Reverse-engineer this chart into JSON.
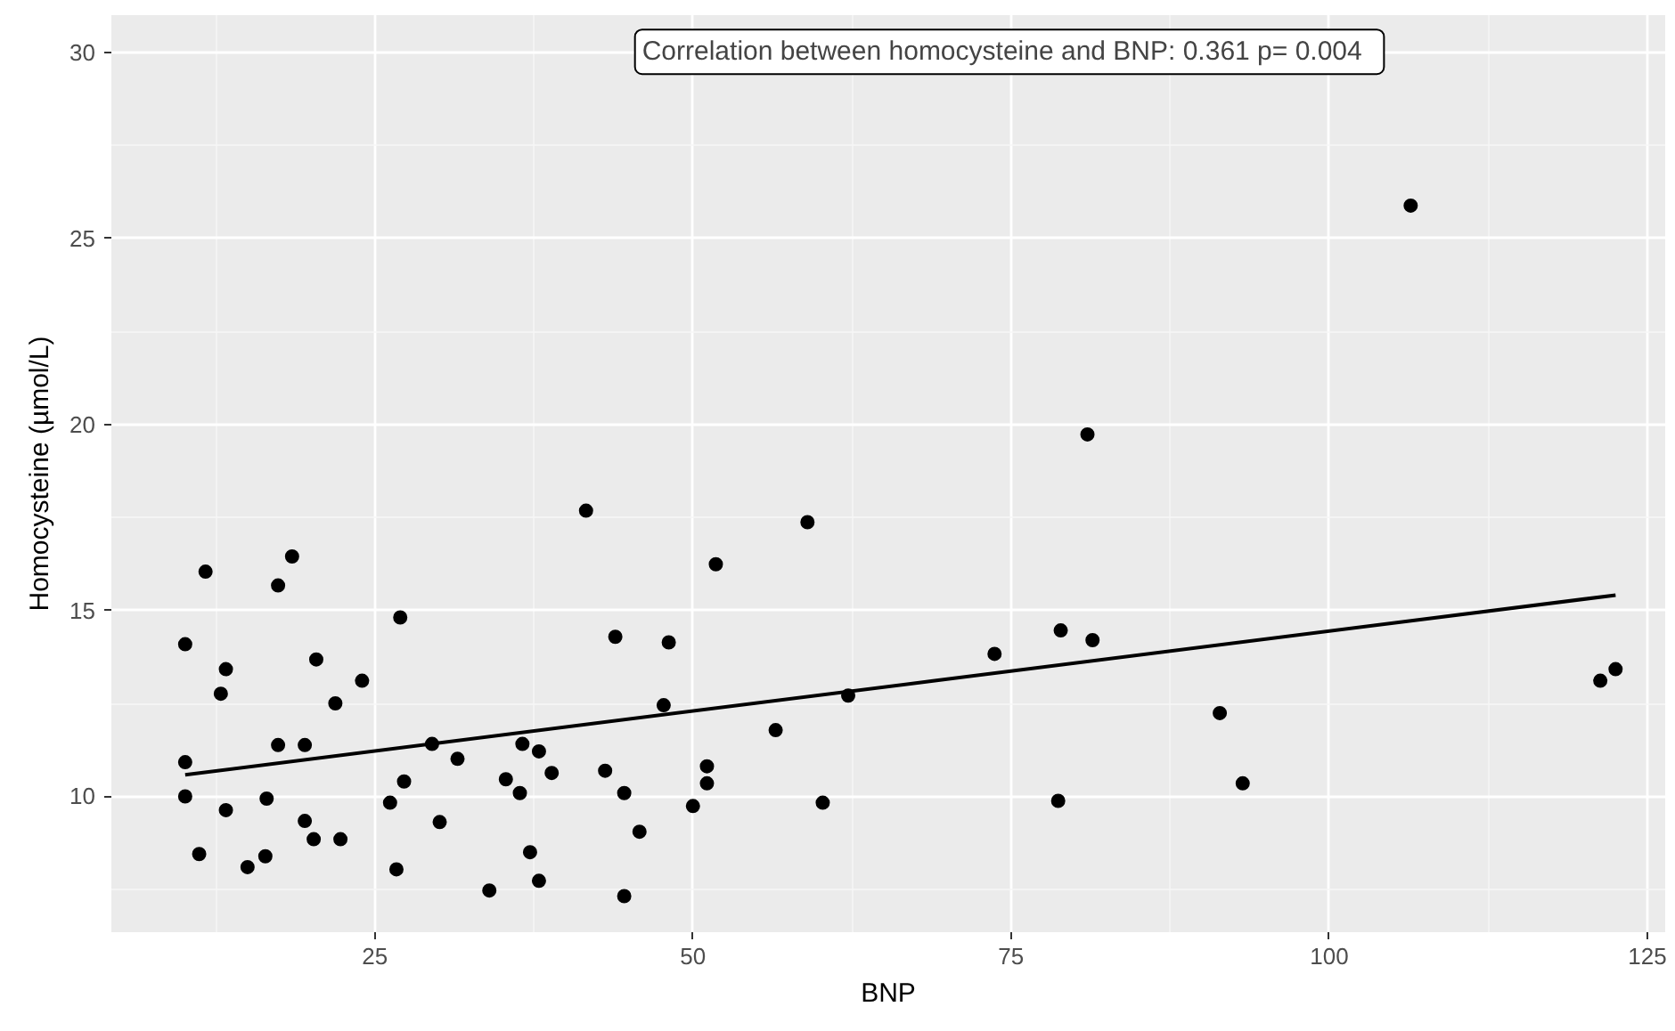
{
  "chart_data": {
    "type": "scatter",
    "xlabel": "BNP",
    "ylabel": "Homocysteine (µmol/L)",
    "annotations": [
      "Correlation between homocysteine and BNP:  0.361  p= 0.004"
    ],
    "xlim": [
      4.3,
      126.4
    ],
    "ylim": [
      6.35,
      31.0
    ],
    "xticks": [
      25,
      50,
      75,
      100,
      125
    ],
    "yticks": [
      10,
      15,
      20,
      25,
      30
    ],
    "grid": true,
    "series": [
      {
        "color": "#000000",
        "marker": "circle",
        "x": [
          10.1,
          10.1,
          10.1,
          11.7,
          11.2,
          12.9,
          13.3,
          13.3,
          15.0,
          16.4,
          16.5,
          17.4,
          17.4,
          18.5,
          19.5,
          19.5,
          20.2,
          20.4,
          21.9,
          22.3,
          24.0,
          26.2,
          26.7,
          27.0,
          27.3,
          29.5,
          30.1,
          31.5,
          34.0,
          35.3,
          36.6,
          36.4,
          37.2,
          37.9,
          37.9,
          38.9,
          41.6,
          43.1,
          43.9,
          44.6,
          44.6,
          45.8,
          47.7,
          48.1,
          50.0,
          51.1,
          51.1,
          51.8,
          56.5,
          59.0,
          60.2,
          62.2,
          73.7,
          78.7,
          78.9,
          81.0,
          81.4,
          91.4,
          93.2,
          106.4,
          121.3,
          122.5
        ],
        "values": [
          14.09,
          10.92,
          10.0,
          16.04,
          8.45,
          12.76,
          13.42,
          9.63,
          8.1,
          8.39,
          9.94,
          15.67,
          11.38,
          16.45,
          11.38,
          9.34,
          8.85,
          13.68,
          12.5,
          8.85,
          13.11,
          9.83,
          8.04,
          14.81,
          10.4,
          11.41,
          9.31,
          11.01,
          7.47,
          10.46,
          11.41,
          10.09,
          8.5,
          11.21,
          7.73,
          10.63,
          17.68,
          10.69,
          14.29,
          10.09,
          7.32,
          9.05,
          12.45,
          14.14,
          9.74,
          10.81,
          10.35,
          16.24,
          11.78,
          17.37,
          9.83,
          12.71,
          13.83,
          9.88,
          14.46,
          19.73,
          14.2,
          12.24,
          10.35,
          25.88,
          13.11,
          13.42
        ]
      },
      {
        "type": "line",
        "color": "#000000",
        "x": [
          10.1,
          122.5
        ],
        "values": [
          10.58,
          15.41
        ]
      }
    ]
  }
}
